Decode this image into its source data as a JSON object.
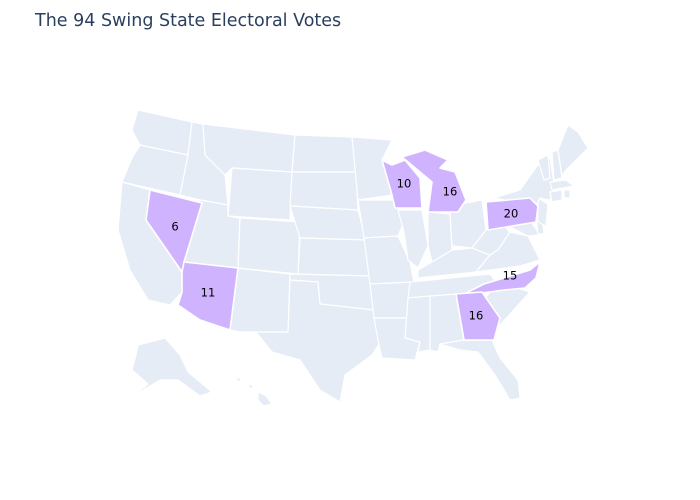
{
  "title": "The 94 Swing State Electoral Votes",
  "colors": {
    "land": "#e5ecf6",
    "swing": "#d0b3ff",
    "border": "#ffffff",
    "title": "#2a3f5f"
  },
  "map": {
    "projection": "albers-usa",
    "swing_states": [
      {
        "state": "Nevada",
        "votes": "6"
      },
      {
        "state": "Arizona",
        "votes": "11"
      },
      {
        "state": "Wisconsin",
        "votes": "10"
      },
      {
        "state": "Michigan",
        "votes": "16"
      },
      {
        "state": "Pennsylvania",
        "votes": "20"
      },
      {
        "state": "North Carolina",
        "votes": "15"
      },
      {
        "state": "Georgia",
        "votes": "16"
      }
    ]
  }
}
